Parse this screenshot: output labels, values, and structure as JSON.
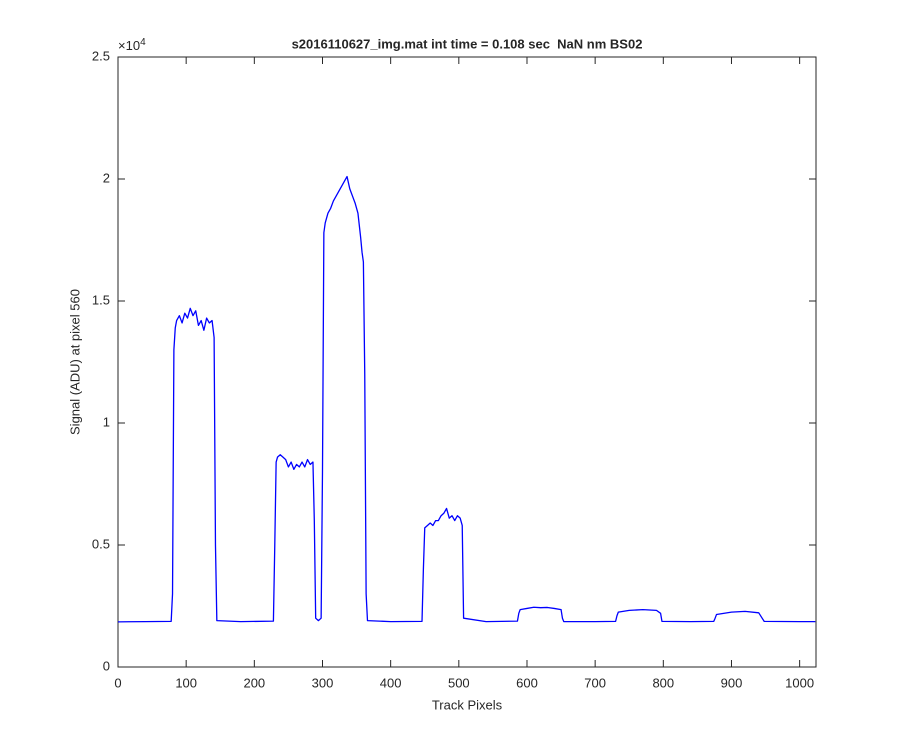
{
  "chart_data": {
    "type": "line",
    "title": "s2016110627_img.mat int time = 0.108 sec  NaN nm BS02",
    "xlabel": "Track Pixels",
    "ylabel": "Signal (ADU) at pixel 560",
    "y_exponent": {
      "base": "×10",
      "power": "4"
    },
    "xlim": [
      0,
      1024
    ],
    "ylim": [
      0,
      2.5
    ],
    "xticks": [
      0,
      100,
      200,
      300,
      400,
      500,
      600,
      700,
      800,
      900,
      1000
    ],
    "yticks": [
      0,
      0.5,
      1,
      1.5,
      2,
      2.5
    ],
    "grid": false,
    "x": [
      0,
      40,
      78,
      80,
      82,
      84,
      86,
      90,
      94,
      98,
      102,
      106,
      110,
      114,
      118,
      122,
      126,
      130,
      134,
      138,
      141,
      143,
      145,
      180,
      228,
      230,
      232,
      234,
      238,
      242,
      246,
      250,
      254,
      258,
      262,
      266,
      270,
      274,
      278,
      282,
      286,
      288,
      290,
      294,
      298,
      300,
      302,
      304,
      308,
      312,
      316,
      320,
      324,
      328,
      332,
      336,
      340,
      344,
      348,
      352,
      356,
      358,
      360,
      362,
      364,
      366,
      400,
      446,
      448,
      450,
      454,
      458,
      462,
      466,
      470,
      474,
      478,
      482,
      486,
      490,
      494,
      498,
      502,
      505,
      507,
      540,
      586,
      588,
      590,
      600,
      610,
      620,
      630,
      640,
      650,
      652,
      654,
      700,
      730,
      732,
      734,
      750,
      770,
      790,
      796,
      798,
      840,
      874,
      876,
      878,
      900,
      920,
      940,
      945,
      948,
      1000,
      1023
    ],
    "series": [
      {
        "color": "#0000ff",
        "values": [
          0.185,
          0.186,
          0.187,
          0.3,
          1.3,
          1.39,
          1.42,
          1.44,
          1.41,
          1.45,
          1.43,
          1.47,
          1.44,
          1.46,
          1.4,
          1.42,
          1.38,
          1.43,
          1.41,
          1.42,
          1.35,
          0.5,
          0.19,
          0.186,
          0.188,
          0.5,
          0.84,
          0.86,
          0.87,
          0.86,
          0.85,
          0.82,
          0.84,
          0.81,
          0.83,
          0.82,
          0.84,
          0.82,
          0.85,
          0.83,
          0.84,
          0.6,
          0.2,
          0.19,
          0.2,
          0.8,
          1.78,
          1.82,
          1.86,
          1.88,
          1.91,
          1.93,
          1.95,
          1.97,
          1.99,
          2.01,
          1.96,
          1.93,
          1.9,
          1.86,
          1.76,
          1.7,
          1.66,
          1.2,
          0.3,
          0.19,
          0.186,
          0.187,
          0.4,
          0.57,
          0.58,
          0.59,
          0.58,
          0.6,
          0.6,
          0.62,
          0.63,
          0.65,
          0.61,
          0.62,
          0.6,
          0.62,
          0.61,
          0.58,
          0.2,
          0.186,
          0.188,
          0.22,
          0.235,
          0.24,
          0.245,
          0.243,
          0.244,
          0.24,
          0.235,
          0.2,
          0.186,
          0.186,
          0.187,
          0.21,
          0.225,
          0.232,
          0.235,
          0.232,
          0.22,
          0.187,
          0.186,
          0.187,
          0.2,
          0.215,
          0.225,
          0.228,
          0.222,
          0.2,
          0.187,
          0.186,
          0.186
        ]
      }
    ]
  }
}
